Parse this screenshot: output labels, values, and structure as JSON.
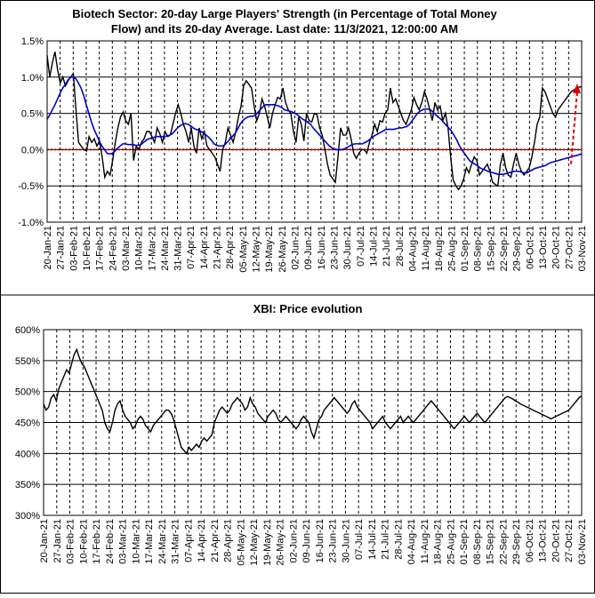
{
  "charts": [
    {
      "type": "line",
      "title_line1": "Biotech Sector: 20-day Large Players' Strength (in Percentage of Total Money",
      "title_line2": "Flow) and its 20-day Average. Last date: 11/3/2021, 12:00:00 AM",
      "y_ticks": [
        "1.5%",
        "1.0%",
        "0.5%",
        "0.0%",
        "-0.5%",
        "-1.0%"
      ],
      "ylim": [
        -1.0,
        1.5
      ],
      "x_ticks": [
        "20-Jan-21",
        "27-Jan-21",
        "03-Feb-21",
        "10-Feb-21",
        "17-Feb-21",
        "24-Feb-21",
        "03-Mar-21",
        "10-Mar-21",
        "17-Mar-21",
        "24-Mar-21",
        "31-Mar-21",
        "07-Apr-21",
        "14-Apr-21",
        "21-Apr-21",
        "28-Apr-21",
        "05-May-21",
        "12-May-21",
        "19-May-21",
        "26-May-21",
        "02-Jun-21",
        "09-Jun-21",
        "16-Jun-21",
        "23-Jun-21",
        "30-Jun-21",
        "07-Jul-21",
        "14-Jul-21",
        "21-Jul-21",
        "28-Jul-21",
        "04-Aug-21",
        "11-Aug-21",
        "18-Aug-21",
        "25-Aug-21",
        "01-Sep-21",
        "08-Sep-21",
        "15-Sep-21",
        "22-Sep-21",
        "29-Sep-21",
        "06-Oct-21",
        "13-Oct-21",
        "20-Oct-21",
        "27-Oct-21",
        "03-Nov-21"
      ],
      "series_colors": [
        "#000000",
        "#0000cc"
      ],
      "zero_line_color": "#cc0000",
      "arrow_color": "#dd0000",
      "x": [
        0,
        1,
        2,
        3,
        4,
        5,
        6,
        7,
        8,
        9,
        10,
        11,
        12,
        13,
        14,
        15,
        16,
        17,
        18,
        19,
        20,
        21,
        22,
        23,
        24,
        25,
        26,
        27,
        28,
        29,
        30,
        31,
        32,
        33,
        34,
        35,
        36,
        37,
        38,
        39,
        40,
        41,
        42,
        43,
        44,
        45,
        46,
        47,
        48,
        49,
        50,
        51,
        52,
        53,
        54,
        55,
        56,
        57,
        58,
        59,
        60,
        61,
        62,
        63,
        64,
        65,
        66,
        67,
        68,
        69,
        70,
        71,
        72,
        73,
        74,
        75,
        76,
        77,
        78,
        79,
        80,
        81,
        82,
        83,
        84,
        85,
        86,
        87,
        88,
        89,
        90,
        91,
        92,
        93,
        94,
        95,
        96,
        97,
        98,
        99,
        100,
        101,
        102,
        103,
        104,
        105,
        106,
        107,
        108,
        109,
        110,
        111,
        112,
        113,
        114,
        115,
        116,
        117,
        118,
        119,
        120,
        121,
        122,
        123,
        124,
        125,
        126,
        127,
        128,
        129,
        130,
        131,
        132,
        133,
        134,
        135,
        136,
        137,
        138,
        139,
        140,
        141,
        142,
        143,
        144,
        145,
        146,
        147,
        148,
        149,
        150,
        151,
        152,
        153,
        154,
        155,
        156,
        157,
        158,
        159,
        160,
        161,
        162,
        163,
        164,
        165,
        166,
        167,
        168,
        169,
        170,
        171,
        172,
        173,
        174,
        175,
        176,
        177,
        178,
        179,
        180,
        181,
        182,
        183,
        184,
        185,
        186,
        187,
        188,
        189,
        190,
        191,
        192,
        193,
        194,
        195,
        196,
        197,
        198,
        199,
        200,
        201,
        202,
        203,
        204,
        205
      ],
      "strength": [
        1.3,
        1.0,
        1.2,
        1.35,
        1.1,
        0.92,
        1.0,
        0.88,
        0.95,
        1.0,
        1.05,
        0.55,
        0.1,
        0.05,
        0.0,
        -0.02,
        0.18,
        0.1,
        0.15,
        0.05,
        0.12,
        -0.1,
        -0.38,
        -0.3,
        -0.35,
        -0.15,
        0.1,
        0.3,
        0.45,
        0.52,
        0.4,
        0.35,
        0.5,
        -0.15,
        0.05,
        0.0,
        0.1,
        0.15,
        0.25,
        0.25,
        0.18,
        0.1,
        0.3,
        0.22,
        0.1,
        0.25,
        0.18,
        0.2,
        0.35,
        0.5,
        0.62,
        0.5,
        0.35,
        0.25,
        0.1,
        0.3,
        0.05,
        -0.05,
        0.3,
        0.15,
        0.25,
        0.05,
        0.0,
        -0.05,
        -0.1,
        -0.2,
        -0.3,
        0.0,
        0.1,
        0.3,
        0.2,
        0.1,
        0.25,
        0.45,
        0.6,
        0.88,
        0.95,
        0.9,
        0.85,
        0.6,
        0.4,
        0.5,
        0.7,
        0.6,
        0.45,
        0.3,
        0.5,
        0.62,
        0.72,
        0.7,
        0.85,
        0.65,
        0.55,
        0.5,
        0.25,
        0.1,
        0.45,
        0.35,
        0.12,
        0.5,
        0.4,
        0.38,
        0.5,
        0.48,
        0.3,
        0.2,
        0.0,
        -0.2,
        -0.35,
        -0.4,
        -0.45,
        -0.1,
        0.3,
        0.2,
        0.2,
        0.3,
        0.15,
        -0.05,
        -0.12,
        -0.05,
        0.0,
        0.0,
        -0.05,
        0.1,
        0.2,
        0.35,
        0.25,
        0.4,
        0.38,
        0.5,
        0.55,
        0.85,
        0.65,
        0.7,
        0.6,
        0.5,
        0.4,
        0.35,
        0.45,
        0.55,
        0.72,
        0.62,
        0.55,
        0.65,
        0.8,
        0.7,
        0.55,
        0.4,
        0.65,
        0.55,
        0.6,
        0.4,
        0.5,
        0.3,
        -0.1,
        -0.42,
        -0.5,
        -0.55,
        -0.5,
        -0.4,
        -0.25,
        -0.32,
        -0.2,
        -0.1,
        -0.15,
        -0.35,
        -0.3,
        -0.25,
        -0.2,
        -0.3,
        -0.45,
        -0.48,
        -0.5,
        -0.2,
        -0.05,
        -0.25,
        -0.35,
        -0.38,
        -0.2,
        -0.05,
        -0.2,
        -0.3,
        -0.35,
        -0.3,
        -0.25,
        -0.1,
        0.1,
        0.35,
        0.45,
        0.85,
        0.8,
        0.7,
        0.6,
        0.5,
        0.45,
        0.55,
        0.6,
        0.65,
        0.7,
        0.75,
        0.8,
        0.82,
        0.85,
        0.86,
        0.87
      ],
      "average": [
        0.42,
        0.48,
        0.55,
        0.62,
        0.7,
        0.78,
        0.85,
        0.9,
        0.96,
        1.0,
        1.0,
        0.98,
        0.92,
        0.85,
        0.75,
        0.62,
        0.5,
        0.38,
        0.28,
        0.2,
        0.12,
        0.05,
        0.0,
        -0.05,
        -0.06,
        -0.05,
        -0.02,
        0.02,
        0.05,
        0.08,
        0.08,
        0.07,
        0.07,
        0.07,
        0.06,
        0.06,
        0.07,
        0.1,
        0.13,
        0.15,
        0.16,
        0.17,
        0.18,
        0.18,
        0.18,
        0.18,
        0.19,
        0.2,
        0.22,
        0.26,
        0.3,
        0.33,
        0.35,
        0.36,
        0.35,
        0.33,
        0.3,
        0.28,
        0.27,
        0.25,
        0.23,
        0.2,
        0.17,
        0.13,
        0.08,
        0.06,
        0.05,
        0.05,
        0.06,
        0.1,
        0.14,
        0.18,
        0.22,
        0.28,
        0.35,
        0.4,
        0.43,
        0.45,
        0.46,
        0.46,
        0.48,
        0.52,
        0.56,
        0.6,
        0.62,
        0.62,
        0.62,
        0.62,
        0.61,
        0.6,
        0.58,
        0.55,
        0.54,
        0.53,
        0.52,
        0.5,
        0.48,
        0.45,
        0.42,
        0.4,
        0.38,
        0.35,
        0.3,
        0.26,
        0.22,
        0.18,
        0.14,
        0.1,
        0.06,
        0.03,
        0.01,
        0.0,
        0.0,
        0.0,
        0.01,
        0.03,
        0.05,
        0.07,
        0.08,
        0.08,
        0.08,
        0.08,
        0.1,
        0.12,
        0.15,
        0.18,
        0.2,
        0.22,
        0.24,
        0.26,
        0.28,
        0.28,
        0.28,
        0.28,
        0.29,
        0.3,
        0.3,
        0.31,
        0.32,
        0.35,
        0.4,
        0.45,
        0.5,
        0.53,
        0.55,
        0.56,
        0.56,
        0.55,
        0.52,
        0.48,
        0.45,
        0.42,
        0.38,
        0.34,
        0.3,
        0.26,
        0.2,
        0.14,
        0.06,
        0.0,
        -0.05,
        -0.1,
        -0.15,
        -0.18,
        -0.2,
        -0.22,
        -0.25,
        -0.27,
        -0.28,
        -0.3,
        -0.31,
        -0.32,
        -0.33,
        -0.34,
        -0.34,
        -0.34,
        -0.33,
        -0.32,
        -0.31,
        -0.3,
        -0.3,
        -0.3,
        -0.31,
        -0.32,
        -0.32,
        -0.3,
        -0.28,
        -0.26,
        -0.25,
        -0.24,
        -0.23,
        -0.22,
        -0.2,
        -0.18,
        -0.17,
        -0.16,
        -0.15,
        -0.14,
        -0.13,
        -0.12,
        -0.11,
        -0.1,
        -0.09,
        -0.08,
        -0.07,
        -0.06
      ],
      "arrow_from": [
        -0.2,
        0.0
      ],
      "arrow_to": [
        0.9,
        0.0
      ]
    },
    {
      "type": "line",
      "title_line1": "XBI: Price evolution",
      "y_ticks": [
        "600%",
        "550%",
        "500%",
        "450%",
        "400%",
        "350%",
        "300%"
      ],
      "ylim": [
        300,
        600
      ],
      "x_ticks": [
        "20-Jan-21",
        "27-Jan-21",
        "03-Feb-21",
        "10-Feb-21",
        "17-Feb-21",
        "24-Feb-21",
        "03-Mar-21",
        "10-Mar-21",
        "17-Mar-21",
        "24-Mar-21",
        "31-Mar-21",
        "07-Apr-21",
        "14-Apr-21",
        "21-Apr-21",
        "28-Apr-21",
        "05-May-21",
        "12-May-21",
        "19-May-21",
        "26-May-21",
        "02-Jun-21",
        "09-Jun-21",
        "16-Jun-21",
        "23-Jun-21",
        "30-Jun-21",
        "07-Jul-21",
        "14-Jul-21",
        "21-Jul-21",
        "28-Jul-21",
        "04-Aug-21",
        "11-Aug-21",
        "18-Aug-21",
        "25-Aug-21",
        "01-Sep-21",
        "08-Sep-21",
        "15-Sep-21",
        "22-Sep-21",
        "29-Sep-21",
        "06-Oct-21",
        "13-Oct-21",
        "20-Oct-21",
        "27-Oct-21",
        "03-Nov-21"
      ],
      "series_colors": [
        "#000000"
      ],
      "price": [
        480,
        470,
        475,
        490,
        495,
        485,
        505,
        515,
        525,
        535,
        530,
        545,
        560,
        568,
        555,
        545,
        540,
        530,
        520,
        510,
        500,
        490,
        480,
        470,
        450,
        440,
        435,
        450,
        470,
        480,
        485,
        470,
        460,
        455,
        450,
        440,
        445,
        455,
        460,
        455,
        445,
        440,
        435,
        445,
        450,
        455,
        460,
        465,
        470,
        470,
        465,
        455,
        440,
        425,
        410,
        405,
        400,
        410,
        405,
        410,
        415,
        410,
        420,
        425,
        420,
        425,
        430,
        450,
        460,
        470,
        475,
        470,
        465,
        470,
        480,
        485,
        490,
        485,
        480,
        470,
        475,
        490,
        480,
        475,
        465,
        460,
        455,
        450,
        460,
        465,
        470,
        465,
        455,
        450,
        455,
        460,
        455,
        450,
        445,
        440,
        445,
        455,
        460,
        455,
        450,
        435,
        425,
        440,
        455,
        460,
        470,
        475,
        480,
        485,
        490,
        485,
        480,
        475,
        470,
        465,
        470,
        480,
        485,
        475,
        470,
        465,
        460,
        455,
        450,
        440,
        445,
        450,
        455,
        460,
        450,
        445,
        440,
        445,
        450,
        455,
        460,
        450,
        455,
        460,
        455,
        450,
        455,
        460,
        465,
        470,
        475,
        480,
        485,
        480,
        475,
        470,
        465,
        460,
        455,
        450,
        445,
        440,
        445,
        450,
        455,
        460,
        455,
        450,
        455,
        460,
        465,
        460,
        455,
        450,
        455,
        460,
        465,
        470,
        475,
        480,
        485,
        490,
        492,
        490,
        488,
        485,
        483,
        480,
        478,
        476,
        474,
        472,
        470,
        468,
        466,
        464,
        462,
        460,
        458,
        456,
        458,
        460,
        462,
        464,
        466,
        468,
        470,
        475,
        480,
        485,
        490,
        493
      ]
    }
  ]
}
